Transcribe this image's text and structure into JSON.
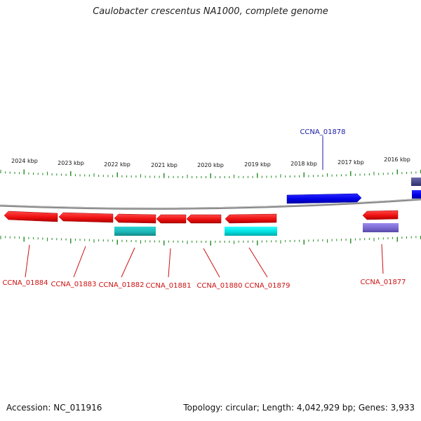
{
  "title": "Caulobacter crescentus NA1000, complete genome",
  "footer": {
    "accession": "Accession: NC_011916",
    "summary": "Topology: circular; Length: 4,042,929 bp; Genes: 3,933"
  },
  "scale_labels": [
    "2024 kbp",
    "2023 kbp",
    "2022 kbp",
    "2021 kbp",
    "2020 kbp",
    "2019 kbp",
    "2018 kbp",
    "2017 kbp",
    "2016 kbp"
  ],
  "gene_labels": [
    {
      "name": "CCNA_01878",
      "strand": "forward"
    },
    {
      "name": "CCNA_01884",
      "strand": "reverse"
    },
    {
      "name": "CCNA_01883",
      "strand": "reverse"
    },
    {
      "name": "CCNA_01882",
      "strand": "reverse"
    },
    {
      "name": "CCNA_01881",
      "strand": "reverse"
    },
    {
      "name": "CCNA_01880",
      "strand": "reverse"
    },
    {
      "name": "CCNA_01879",
      "strand": "reverse"
    },
    {
      "name": "CCNA_01877",
      "strand": "reverse"
    }
  ],
  "colors": {
    "forward_gene": "#0000e8",
    "reverse_gene": "#ee1111",
    "forward_label": "#1a1aaa",
    "reverse_label": "#cc1111",
    "ticks": "#1e8a1e",
    "backbone": "#888888",
    "cyan_feature": "#00e0e0",
    "teal_feature": "#1fb8b8",
    "purple_feature": "#7a6ad0",
    "dark_purple_feature": "#4a4a8a"
  }
}
